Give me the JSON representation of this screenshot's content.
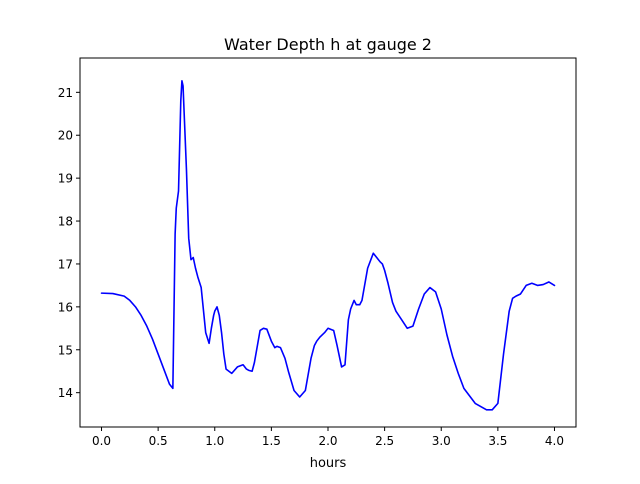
{
  "chart_data": {
    "type": "line",
    "title": "Water Depth h at gauge 2",
    "xlabel": "hours",
    "ylabel": "",
    "xlim": [
      -0.19,
      4.19
    ],
    "ylim": [
      13.2,
      21.8
    ],
    "xticks": [
      0.0,
      0.5,
      1.0,
      1.5,
      2.0,
      2.5,
      3.0,
      3.5,
      4.0
    ],
    "xtick_labels": [
      "0.0",
      "0.5",
      "1.0",
      "1.5",
      "2.0",
      "2.5",
      "3.0",
      "3.5",
      "4.0"
    ],
    "yticks": [
      14,
      15,
      16,
      17,
      18,
      19,
      20,
      21
    ],
    "ytick_labels": [
      "14",
      "15",
      "16",
      "17",
      "18",
      "19",
      "20",
      "21"
    ],
    "grid": false,
    "legend": "none",
    "series": [
      {
        "color": "#0000ff",
        "x": [
          0.0,
          0.1,
          0.2,
          0.25,
          0.3,
          0.35,
          0.4,
          0.45,
          0.5,
          0.55,
          0.6,
          0.63,
          0.65,
          0.66,
          0.68,
          0.7,
          0.71,
          0.72,
          0.73,
          0.75,
          0.77,
          0.79,
          0.81,
          0.83,
          0.85,
          0.88,
          0.92,
          0.95,
          0.97,
          0.99,
          1.0,
          1.02,
          1.04,
          1.06,
          1.08,
          1.1,
          1.15,
          1.2,
          1.25,
          1.28,
          1.3,
          1.33,
          1.35,
          1.38,
          1.4,
          1.43,
          1.46,
          1.5,
          1.53,
          1.55,
          1.58,
          1.62,
          1.65,
          1.7,
          1.75,
          1.8,
          1.85,
          1.88,
          1.9,
          1.93,
          1.97,
          2.0,
          2.05,
          2.08,
          2.12,
          2.15,
          2.18,
          2.2,
          2.23,
          2.25,
          2.28,
          2.3,
          2.35,
          2.4,
          2.43,
          2.46,
          2.48,
          2.5,
          2.53,
          2.57,
          2.6,
          2.65,
          2.7,
          2.75,
          2.8,
          2.85,
          2.9,
          2.95,
          3.0,
          3.05,
          3.1,
          3.15,
          3.2,
          3.3,
          3.4,
          3.45,
          3.5,
          3.55,
          3.6,
          3.63,
          3.66,
          3.7,
          3.75,
          3.8,
          3.85,
          3.9,
          3.95,
          4.0
        ],
        "y": [
          16.32,
          16.31,
          16.25,
          16.15,
          16.0,
          15.8,
          15.55,
          15.25,
          14.9,
          14.55,
          14.2,
          14.1,
          17.7,
          18.3,
          18.7,
          20.8,
          21.27,
          21.15,
          20.5,
          19.2,
          17.6,
          17.1,
          17.15,
          16.9,
          16.7,
          16.45,
          15.4,
          15.15,
          15.5,
          15.8,
          15.9,
          16.0,
          15.8,
          15.4,
          14.9,
          14.55,
          14.45,
          14.6,
          14.65,
          14.55,
          14.52,
          14.5,
          14.7,
          15.15,
          15.45,
          15.5,
          15.48,
          15.2,
          15.05,
          15.08,
          15.05,
          14.8,
          14.5,
          14.05,
          13.9,
          14.05,
          14.8,
          15.1,
          15.2,
          15.3,
          15.4,
          15.5,
          15.45,
          15.1,
          14.6,
          14.65,
          15.7,
          15.95,
          16.15,
          16.05,
          16.05,
          16.15,
          16.9,
          17.25,
          17.15,
          17.05,
          17.0,
          16.85,
          16.55,
          16.1,
          15.9,
          15.7,
          15.5,
          15.55,
          15.95,
          16.3,
          16.45,
          16.35,
          15.95,
          15.35,
          14.85,
          14.45,
          14.1,
          13.75,
          13.6,
          13.6,
          13.75,
          14.9,
          15.9,
          16.2,
          16.25,
          16.3,
          16.5,
          16.55,
          16.5,
          16.52,
          16.58,
          16.5
        ]
      }
    ]
  }
}
